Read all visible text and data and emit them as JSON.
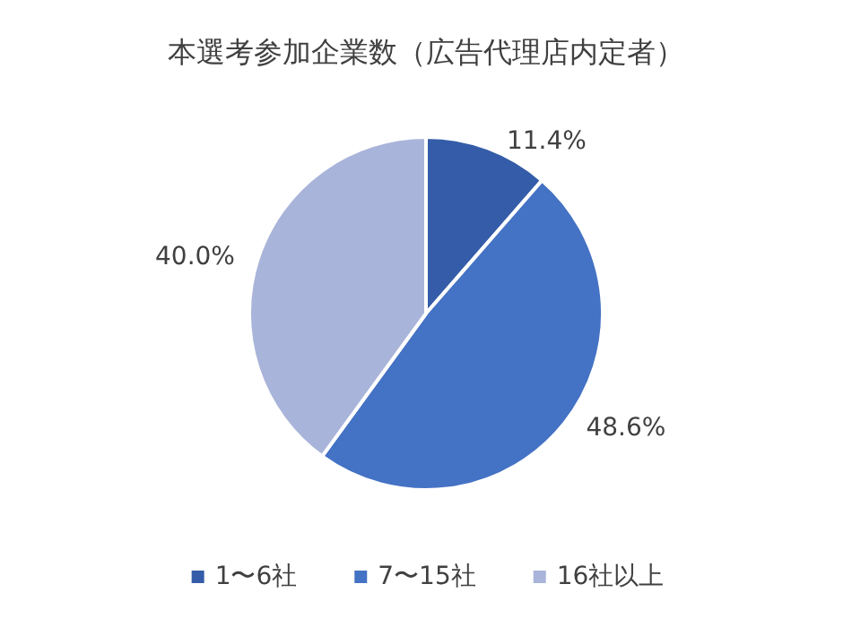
{
  "chart_data": {
    "type": "pie",
    "title": "本選考参加企業数（広告代理店内定者）",
    "categories": [
      "1〜6社",
      "7〜15社",
      "16社以上"
    ],
    "values": [
      11.4,
      48.6,
      40.0
    ],
    "value_labels": [
      "11.4%",
      "48.6%",
      "40.0%"
    ],
    "colors": [
      "#345ca8",
      "#4472c4",
      "#a9b4da"
    ],
    "legend": "bottom"
  }
}
